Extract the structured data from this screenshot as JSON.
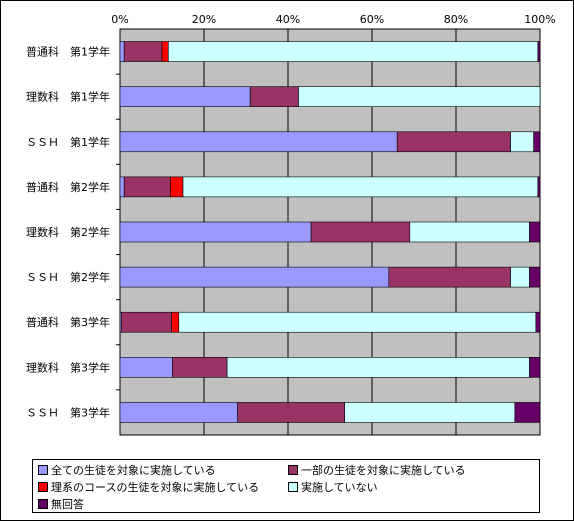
{
  "chart_data": {
    "type": "bar",
    "orientation": "horizontal",
    "stacked": "percent",
    "xlim": [
      0,
      100
    ],
    "x_ticks": [
      "0%",
      "20%",
      "40%",
      "60%",
      "80%",
      "100%"
    ],
    "categories": [
      "普通科　第1学年",
      "理数科　第1学年",
      "ＳＳＨ　第1学年",
      "普通科　第2学年",
      "理数科　第2学年",
      "ＳＳＨ　第2学年",
      "普通科　第3学年",
      "理数科　第3学年",
      "ＳＳＨ　第3学年"
    ],
    "series": [
      {
        "name": "全ての生徒を対象に実施している",
        "color": "#9999ff",
        "values": [
          1.0,
          31.0,
          66.0,
          1.0,
          45.5,
          64.0,
          0.3,
          12.5,
          28.0
        ]
      },
      {
        "name": "一部の生徒を対象に実施している",
        "color": "#993366",
        "values": [
          9.0,
          11.5,
          27.0,
          11.0,
          23.5,
          29.0,
          12.0,
          13.0,
          25.5
        ]
      },
      {
        "name": "理系のコースの生徒を対象に実施している",
        "color": "#ff0000",
        "values": [
          1.5,
          0,
          0,
          3.0,
          0,
          0,
          1.7,
          0,
          0
        ]
      },
      {
        "name": "実施していない",
        "color": "#ccffff",
        "values": [
          88.0,
          57.5,
          5.5,
          84.5,
          28.5,
          4.5,
          85.0,
          72.0,
          40.5
        ]
      },
      {
        "name": "無回答",
        "color": "#660066",
        "values": [
          0.5,
          0,
          1.5,
          0.5,
          2.5,
          2.5,
          1.0,
          2.5,
          6.0
        ]
      }
    ],
    "colors": {
      "plot_background": "#c0c0c0",
      "gridline": "#000000"
    },
    "grid": true,
    "legend_position": "bottom"
  }
}
